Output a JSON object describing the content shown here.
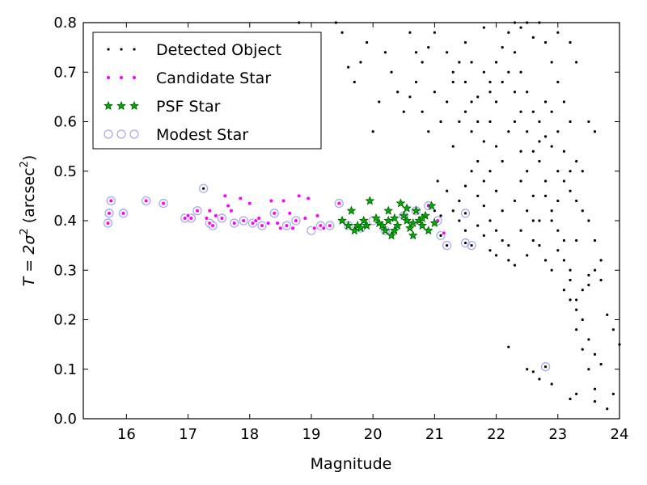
{
  "chart_data": {
    "type": "scatter",
    "xlabel": "Magnitude",
    "ylabel_prefix": "T = 2σ",
    "ylabel_suffix": " (arcsec",
    "ylabel_close": ")",
    "ylabel_exp": "2",
    "xlim": [
      15.3,
      24.0
    ],
    "ylim": [
      0.0,
      0.8
    ],
    "xticks": [
      "16",
      "17",
      "18",
      "19",
      "20",
      "21",
      "22",
      "23",
      "24"
    ],
    "yticks": [
      "0.0",
      "0.1",
      "0.2",
      "0.3",
      "0.4",
      "0.5",
      "0.6",
      "0.7",
      "0.8"
    ],
    "legend_position": "top-left",
    "legend": [
      {
        "name": "Detected Object",
        "marker": "dot",
        "color": "#000000"
      },
      {
        "name": "Candidate Star",
        "marker": "circle",
        "color": "#ff00ff"
      },
      {
        "name": "PSF Star",
        "marker": "star",
        "color": "#00aa00"
      },
      {
        "name": "Modest Star",
        "marker": "ring",
        "color": "#a9a9f0"
      }
    ],
    "series": [
      {
        "name": "Detected Object",
        "points": [
          [
            17.25,
            0.465
          ],
          [
            21.05,
            0.48
          ],
          [
            21.0,
            0.42
          ],
          [
            21.1,
            0.37
          ],
          [
            21.2,
            0.35
          ],
          [
            21.5,
            0.415
          ],
          [
            21.5,
            0.355
          ],
          [
            21.6,
            0.35
          ],
          [
            22.8,
            0.105
          ],
          [
            22.2,
            0.145
          ],
          [
            22.5,
            0.1
          ],
          [
            22.6,
            0.095
          ],
          [
            22.7,
            0.08
          ],
          [
            22.9,
            0.07
          ],
          [
            23.2,
            0.04
          ],
          [
            23.3,
            0.05
          ],
          [
            23.6,
            0.035
          ],
          [
            23.8,
            0.02
          ],
          [
            23.9,
            0.05
          ],
          [
            24.0,
            0.15
          ],
          [
            23.6,
            0.13
          ],
          [
            23.7,
            0.11
          ],
          [
            23.5,
            0.16
          ],
          [
            23.4,
            0.2
          ],
          [
            23.3,
            0.24
          ],
          [
            23.5,
            0.27
          ],
          [
            23.6,
            0.3
          ],
          [
            23.7,
            0.28
          ],
          [
            23.8,
            0.21
          ],
          [
            23.9,
            0.18
          ],
          [
            23.1,
            0.32
          ],
          [
            23.2,
            0.3
          ],
          [
            23.3,
            0.36
          ],
          [
            23.0,
            0.38
          ],
          [
            22.9,
            0.42
          ],
          [
            22.8,
            0.45
          ],
          [
            22.7,
            0.4
          ],
          [
            22.6,
            0.36
          ],
          [
            22.5,
            0.33
          ],
          [
            22.4,
            0.38
          ],
          [
            22.3,
            0.31
          ],
          [
            22.2,
            0.35
          ],
          [
            22.1,
            0.42
          ],
          [
            22.0,
            0.46
          ],
          [
            21.9,
            0.4
          ],
          [
            21.8,
            0.43
          ],
          [
            21.7,
            0.45
          ],
          [
            21.6,
            0.5
          ],
          [
            21.5,
            0.47
          ],
          [
            21.4,
            0.44
          ],
          [
            21.3,
            0.42
          ],
          [
            21.2,
            0.46
          ],
          [
            21.1,
            0.41
          ],
          [
            21.3,
            0.55
          ],
          [
            21.4,
            0.6
          ],
          [
            21.5,
            0.62
          ],
          [
            21.6,
            0.58
          ],
          [
            21.7,
            0.65
          ],
          [
            21.8,
            0.7
          ],
          [
            21.9,
            0.68
          ],
          [
            22.0,
            0.72
          ],
          [
            22.1,
            0.75
          ],
          [
            22.2,
            0.78
          ],
          [
            22.3,
            0.74
          ],
          [
            22.4,
            0.7
          ],
          [
            22.5,
            0.66
          ],
          [
            22.6,
            0.62
          ],
          [
            22.7,
            0.6
          ],
          [
            22.8,
            0.57
          ],
          [
            22.9,
            0.55
          ],
          [
            23.0,
            0.5
          ],
          [
            23.1,
            0.48
          ],
          [
            23.2,
            0.46
          ],
          [
            23.3,
            0.52
          ],
          [
            23.4,
            0.5
          ],
          [
            23.5,
            0.6
          ],
          [
            23.6,
            0.58
          ],
          [
            22.4,
            0.79
          ],
          [
            22.6,
            0.77
          ],
          [
            22.8,
            0.76
          ],
          [
            22.9,
            0.72
          ],
          [
            23.0,
            0.68
          ],
          [
            23.1,
            0.64
          ],
          [
            23.2,
            0.6
          ],
          [
            21.0,
            0.78
          ],
          [
            20.9,
            0.75
          ],
          [
            20.8,
            0.72
          ],
          [
            20.7,
            0.68
          ],
          [
            20.6,
            0.65
          ],
          [
            20.5,
            0.62
          ],
          [
            20.4,
            0.66
          ],
          [
            20.3,
            0.7
          ],
          [
            20.2,
            0.74
          ],
          [
            20.1,
            0.64
          ],
          [
            20.0,
            0.58
          ],
          [
            19.9,
            0.76
          ],
          [
            19.8,
            0.72
          ],
          [
            19.7,
            0.68
          ],
          [
            19.6,
            0.71
          ],
          [
            19.5,
            0.78
          ],
          [
            19.4,
            0.8
          ],
          [
            18.8,
            0.8
          ],
          [
            21.2,
            0.74
          ],
          [
            21.3,
            0.7
          ],
          [
            21.5,
            0.76
          ],
          [
            21.6,
            0.72
          ],
          [
            21.8,
            0.79
          ],
          [
            21.9,
            0.6
          ],
          [
            22.0,
            0.55
          ],
          [
            22.1,
            0.52
          ],
          [
            22.2,
            0.58
          ],
          [
            22.3,
            0.6
          ],
          [
            22.4,
            0.54
          ],
          [
            22.5,
            0.5
          ],
          [
            22.6,
            0.45
          ],
          [
            22.7,
            0.52
          ],
          [
            22.8,
            0.48
          ],
          [
            22.9,
            0.4
          ],
          [
            23.0,
            0.44
          ],
          [
            23.1,
            0.36
          ],
          [
            23.2,
            0.28
          ],
          [
            23.3,
            0.22
          ],
          [
            23.4,
            0.26
          ],
          [
            23.5,
            0.29
          ],
          [
            21.7,
            0.52
          ],
          [
            21.8,
            0.48
          ],
          [
            21.9,
            0.5
          ],
          [
            22.0,
            0.38
          ],
          [
            22.1,
            0.36
          ],
          [
            22.2,
            0.32
          ],
          [
            21.5,
            0.38
          ],
          [
            21.4,
            0.4
          ],
          [
            21.7,
            0.39
          ],
          [
            21.8,
            0.37
          ],
          [
            21.9,
            0.34
          ],
          [
            22.0,
            0.33
          ],
          [
            22.3,
            0.44
          ],
          [
            22.4,
            0.48
          ],
          [
            22.5,
            0.42
          ],
          [
            22.6,
            0.4
          ],
          [
            22.7,
            0.35
          ],
          [
            22.8,
            0.32
          ],
          [
            22.9,
            0.3
          ],
          [
            23.0,
            0.34
          ],
          [
            23.1,
            0.26
          ],
          [
            23.2,
            0.24
          ],
          [
            23.3,
            0.18
          ],
          [
            23.4,
            0.14
          ],
          [
            23.5,
            0.1
          ],
          [
            23.6,
            0.06
          ],
          [
            20.6,
            0.78
          ],
          [
            20.7,
            0.74
          ],
          [
            20.8,
            0.62
          ],
          [
            20.9,
            0.58
          ],
          [
            21.0,
            0.66
          ],
          [
            21.1,
            0.6
          ],
          [
            21.2,
            0.64
          ],
          [
            21.3,
            0.68
          ],
          [
            21.4,
            0.72
          ],
          [
            21.5,
            0.68
          ],
          [
            21.6,
            0.64
          ],
          [
            21.7,
            0.6
          ],
          [
            21.8,
            0.56
          ],
          [
            21.9,
            0.66
          ],
          [
            22.0,
            0.64
          ],
          [
            22.1,
            0.68
          ],
          [
            22.2,
            0.7
          ],
          [
            22.3,
            0.66
          ],
          [
            22.4,
            0.62
          ],
          [
            22.5,
            0.58
          ],
          [
            22.6,
            0.54
          ],
          [
            22.7,
            0.56
          ],
          [
            22.8,
            0.64
          ],
          [
            22.9,
            0.62
          ],
          [
            23.0,
            0.58
          ],
          [
            23.1,
            0.54
          ],
          [
            23.2,
            0.5
          ],
          [
            23.3,
            0.44
          ],
          [
            23.4,
            0.42
          ],
          [
            23.5,
            0.4
          ],
          [
            23.6,
            0.36
          ],
          [
            23.7,
            0.32
          ],
          [
            22.3,
            0.8
          ],
          [
            22.5,
            0.8
          ],
          [
            22.7,
            0.8
          ],
          [
            23.0,
            0.78
          ],
          [
            23.2,
            0.76
          ],
          [
            23.3,
            0.72
          ]
        ]
      },
      {
        "name": "Candidate Star",
        "points": [
          [
            15.7,
            0.395
          ],
          [
            15.72,
            0.415
          ],
          [
            15.75,
            0.44
          ],
          [
            15.95,
            0.415
          ],
          [
            16.32,
            0.44
          ],
          [
            16.6,
            0.435
          ],
          [
            16.95,
            0.405
          ],
          [
            17.0,
            0.41
          ],
          [
            17.05,
            0.405
          ],
          [
            17.15,
            0.42
          ],
          [
            17.3,
            0.405
          ],
          [
            17.35,
            0.42
          ],
          [
            17.35,
            0.395
          ],
          [
            17.4,
            0.39
          ],
          [
            17.45,
            0.41
          ],
          [
            17.55,
            0.405
          ],
          [
            17.6,
            0.45
          ],
          [
            17.65,
            0.43
          ],
          [
            17.7,
            0.42
          ],
          [
            17.75,
            0.395
          ],
          [
            17.85,
            0.445
          ],
          [
            17.9,
            0.4
          ],
          [
            18.0,
            0.435
          ],
          [
            18.05,
            0.395
          ],
          [
            18.1,
            0.4
          ],
          [
            18.15,
            0.405
          ],
          [
            18.2,
            0.39
          ],
          [
            18.3,
            0.395
          ],
          [
            18.35,
            0.44
          ],
          [
            18.4,
            0.415
          ],
          [
            18.45,
            0.395
          ],
          [
            18.5,
            0.385
          ],
          [
            18.55,
            0.44
          ],
          [
            18.6,
            0.39
          ],
          [
            18.65,
            0.415
          ],
          [
            18.7,
            0.385
          ],
          [
            18.75,
            0.4
          ],
          [
            18.8,
            0.45
          ],
          [
            18.9,
            0.405
          ],
          [
            18.95,
            0.445
          ],
          [
            19.05,
            0.385
          ],
          [
            19.1,
            0.41
          ],
          [
            19.15,
            0.39
          ],
          [
            19.2,
            0.385
          ],
          [
            19.3,
            0.39
          ],
          [
            19.45,
            0.435
          ],
          [
            20.9,
            0.43
          ],
          [
            21.05,
            0.4
          ],
          [
            21.15,
            0.375
          ]
        ]
      },
      {
        "name": "PSF Star",
        "points": [
          [
            19.5,
            0.4
          ],
          [
            19.6,
            0.39
          ],
          [
            19.65,
            0.42
          ],
          [
            19.7,
            0.38
          ],
          [
            19.75,
            0.39
          ],
          [
            19.8,
            0.385
          ],
          [
            19.85,
            0.4
          ],
          [
            19.9,
            0.39
          ],
          [
            19.95,
            0.44
          ],
          [
            20.05,
            0.405
          ],
          [
            20.1,
            0.395
          ],
          [
            20.15,
            0.39
          ],
          [
            20.2,
            0.38
          ],
          [
            20.25,
            0.42
          ],
          [
            20.3,
            0.37
          ],
          [
            20.35,
            0.405
          ],
          [
            20.4,
            0.39
          ],
          [
            20.45,
            0.435
          ],
          [
            20.5,
            0.41
          ],
          [
            20.55,
            0.4
          ],
          [
            20.6,
            0.385
          ],
          [
            20.65,
            0.37
          ],
          [
            20.7,
            0.42
          ],
          [
            20.75,
            0.4
          ],
          [
            20.8,
            0.39
          ],
          [
            20.85,
            0.41
          ],
          [
            20.9,
            0.38
          ],
          [
            20.95,
            0.43
          ],
          [
            21.0,
            0.395
          ],
          [
            20.25,
            0.4
          ],
          [
            20.35,
            0.38
          ],
          [
            20.55,
            0.425
          ],
          [
            20.65,
            0.395
          ],
          [
            20.8,
            0.405
          ]
        ]
      },
      {
        "name": "Modest Star",
        "points": [
          [
            15.7,
            0.395
          ],
          [
            15.72,
            0.415
          ],
          [
            15.75,
            0.44
          ],
          [
            15.95,
            0.415
          ],
          [
            16.32,
            0.44
          ],
          [
            16.6,
            0.435
          ],
          [
            16.95,
            0.405
          ],
          [
            17.05,
            0.405
          ],
          [
            17.15,
            0.42
          ],
          [
            17.25,
            0.465
          ],
          [
            17.35,
            0.395
          ],
          [
            17.4,
            0.39
          ],
          [
            17.55,
            0.405
          ],
          [
            17.75,
            0.395
          ],
          [
            17.9,
            0.4
          ],
          [
            18.05,
            0.395
          ],
          [
            18.2,
            0.39
          ],
          [
            18.4,
            0.415
          ],
          [
            18.6,
            0.39
          ],
          [
            18.75,
            0.4
          ],
          [
            19.0,
            0.38
          ],
          [
            19.15,
            0.39
          ],
          [
            19.3,
            0.39
          ],
          [
            19.45,
            0.435
          ],
          [
            19.6,
            0.39
          ],
          [
            19.8,
            0.385
          ],
          [
            20.0,
            0.4
          ],
          [
            20.2,
            0.38
          ],
          [
            20.5,
            0.41
          ],
          [
            20.7,
            0.42
          ],
          [
            20.9,
            0.43
          ],
          [
            21.05,
            0.4
          ],
          [
            21.1,
            0.37
          ],
          [
            21.2,
            0.35
          ],
          [
            21.5,
            0.415
          ],
          [
            21.5,
            0.355
          ],
          [
            21.6,
            0.35
          ],
          [
            22.8,
            0.105
          ]
        ]
      }
    ]
  }
}
